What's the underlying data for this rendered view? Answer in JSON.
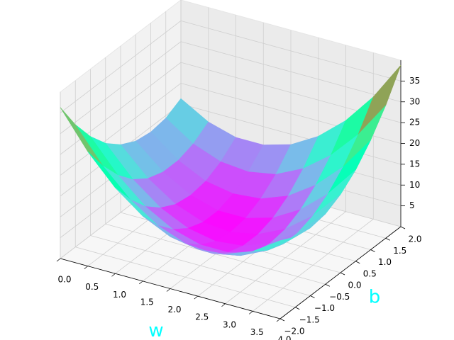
{
  "chart_data": {
    "type": "surface",
    "xlabel": "w",
    "ylabel": "b",
    "label_color": "#00ffff",
    "colormap": "rainbow",
    "x": [
      0,
      0.5,
      1,
      1.5,
      2,
      2.5,
      3,
      3.5,
      4
    ],
    "y": [
      -2,
      -1.5,
      -1,
      -0.5,
      0,
      0.5,
      1,
      1.5,
      2
    ],
    "z": [
      [
        36.3,
        29.4,
        23.8,
        19.4,
        16.3,
        14.4,
        13.8,
        14.4,
        16.3
      ],
      [
        27.5,
        21.3,
        16.3,
        12.5,
        10,
        8.8,
        8.8,
        10,
        12.5
      ],
      [
        20.6,
        15,
        10.6,
        7.5,
        5.6,
        5,
        5.6,
        7.5,
        10.6
      ],
      [
        15.6,
        10.6,
        6.9,
        4.4,
        3.1,
        3.1,
        4.4,
        6.9,
        10.6
      ],
      [
        12.5,
        8.1,
        5,
        3.1,
        2.5,
        3.1,
        5,
        8.1,
        12.5
      ],
      [
        11.3,
        7.5,
        5,
        3.8,
        3.8,
        5,
        7.5,
        11.3,
        16.3
      ],
      [
        11.9,
        8.8,
        6.9,
        6.3,
        6.9,
        8.8,
        11.9,
        16.3,
        21.9
      ],
      [
        14.4,
        11.9,
        10.6,
        10.6,
        11.9,
        14.4,
        18.1,
        23.1,
        29.4
      ],
      [
        18.8,
        16.9,
        16.3,
        16.9,
        18.8,
        21.9,
        26.3,
        31.9,
        38.8
      ]
    ],
    "xlim": [
      0,
      4
    ],
    "ylim": [
      -2,
      2
    ],
    "zlim": [
      0,
      40
    ],
    "xticks": [
      {
        "value": 0,
        "label": "0.0"
      },
      {
        "value": 0.5,
        "label": "0.5"
      },
      {
        "value": 1,
        "label": "1.0"
      },
      {
        "value": 1.5,
        "label": "1.5"
      },
      {
        "value": 2,
        "label": "2.0"
      },
      {
        "value": 2.5,
        "label": "2.5"
      },
      {
        "value": 3,
        "label": "3.0"
      },
      {
        "value": 3.5,
        "label": "3.5"
      },
      {
        "value": 4,
        "label": "4.0"
      }
    ],
    "yticks": [
      {
        "value": -2,
        "label": "−2.0"
      },
      {
        "value": -1.5,
        "label": "−1.5"
      },
      {
        "value": -1,
        "label": "−1.0"
      },
      {
        "value": -0.5,
        "label": "−0.5"
      },
      {
        "value": 0,
        "label": "0.0"
      },
      {
        "value": 0.5,
        "label": "0.5"
      },
      {
        "value": 1,
        "label": "1.0"
      },
      {
        "value": 1.5,
        "label": "1.5"
      },
      {
        "value": 2,
        "label": "2.0"
      }
    ],
    "zticks": [
      5,
      10,
      15,
      20,
      25,
      30,
      35
    ],
    "grid": true
  }
}
